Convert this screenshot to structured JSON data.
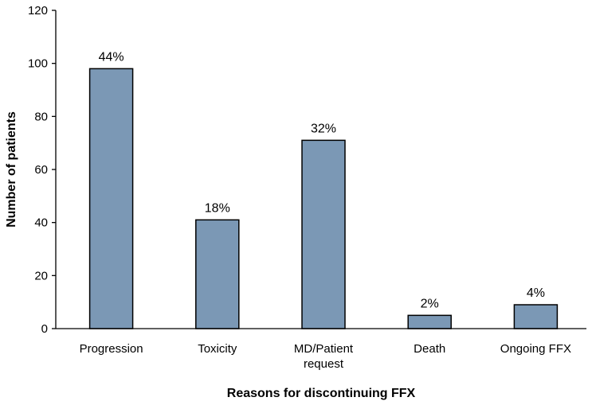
{
  "chart_data": {
    "type": "bar",
    "title": "",
    "xlabel": "Reasons for discontinuing FFX",
    "ylabel": "Number of patients",
    "ylim": [
      0,
      120
    ],
    "yticks": [
      0,
      20,
      40,
      60,
      80,
      100,
      120
    ],
    "categories": [
      [
        "Progression"
      ],
      [
        "Toxicity"
      ],
      [
        "MD/Patient",
        "request"
      ],
      [
        "Death"
      ],
      [
        "Ongoing FFX"
      ]
    ],
    "values": [
      98,
      41,
      71,
      5,
      9
    ],
    "data_labels": [
      "44%",
      "18%",
      "32%",
      "2%",
      "4%"
    ],
    "grid": false,
    "bar_color": "#7B98B5",
    "bar_edge_color": "#000000"
  }
}
